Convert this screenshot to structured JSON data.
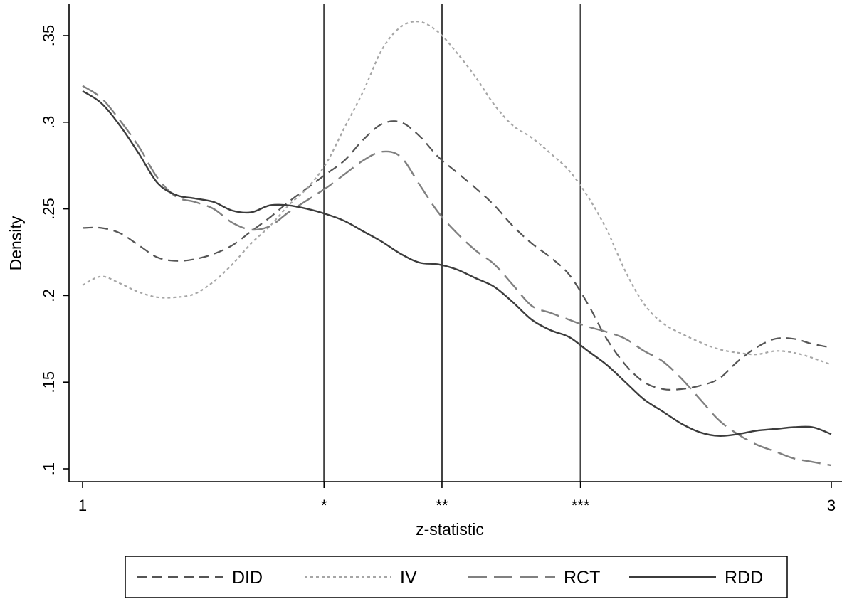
{
  "chart_data": {
    "type": "line",
    "title": "",
    "xlabel": "z-statistic",
    "ylabel": "Density",
    "xlim": [
      1,
      3
    ],
    "ylim": [
      0.1,
      0.36
    ],
    "x_ticks": [
      {
        "value": 1,
        "label": "1"
      },
      {
        "value": 1.645,
        "label": "*"
      },
      {
        "value": 1.96,
        "label": "**"
      },
      {
        "value": 2.33,
        "label": "***"
      },
      {
        "value": 3,
        "label": "3"
      }
    ],
    "y_ticks": [
      {
        "value": 0.1,
        "label": ".1"
      },
      {
        "value": 0.15,
        "label": ".15"
      },
      {
        "value": 0.2,
        "label": ".2"
      },
      {
        "value": 0.25,
        "label": ".25"
      },
      {
        "value": 0.3,
        "label": ".3"
      },
      {
        "value": 0.35,
        "label": ".35"
      }
    ],
    "vlines": [
      1.645,
      1.96,
      2.33
    ],
    "grid": false,
    "legend_position": "bottom",
    "series": [
      {
        "name": "DID",
        "color": "#555555",
        "dash": "14 8",
        "width": 2.2,
        "x": [
          1.0,
          1.05,
          1.1,
          1.15,
          1.2,
          1.25,
          1.3,
          1.35,
          1.4,
          1.45,
          1.5,
          1.55,
          1.6,
          1.65,
          1.7,
          1.75,
          1.8,
          1.85,
          1.9,
          1.95,
          2.0,
          2.05,
          2.1,
          2.15,
          2.2,
          2.25,
          2.3,
          2.35,
          2.4,
          2.45,
          2.5,
          2.55,
          2.6,
          2.65,
          2.7,
          2.75,
          2.8,
          2.85,
          2.9,
          2.95,
          3.0
        ],
        "y": [
          0.239,
          0.239,
          0.236,
          0.229,
          0.222,
          0.22,
          0.221,
          0.224,
          0.229,
          0.237,
          0.245,
          0.254,
          0.262,
          0.27,
          0.278,
          0.29,
          0.299,
          0.3,
          0.292,
          0.28,
          0.271,
          0.262,
          0.252,
          0.24,
          0.23,
          0.222,
          0.212,
          0.195,
          0.175,
          0.16,
          0.15,
          0.146,
          0.146,
          0.148,
          0.152,
          0.162,
          0.17,
          0.175,
          0.175,
          0.172,
          0.17
        ]
      },
      {
        "name": "IV",
        "color": "#a6a6a6",
        "dash": "4 4",
        "width": 2.2,
        "x": [
          1.0,
          1.05,
          1.1,
          1.15,
          1.2,
          1.25,
          1.3,
          1.35,
          1.4,
          1.45,
          1.5,
          1.55,
          1.6,
          1.65,
          1.7,
          1.75,
          1.8,
          1.85,
          1.9,
          1.95,
          2.0,
          2.05,
          2.1,
          2.15,
          2.2,
          2.25,
          2.3,
          2.35,
          2.4,
          2.45,
          2.5,
          2.55,
          2.6,
          2.65,
          2.7,
          2.75,
          2.8,
          2.85,
          2.9,
          2.95,
          3.0
        ],
        "y": [
          0.206,
          0.211,
          0.207,
          0.202,
          0.199,
          0.199,
          0.201,
          0.208,
          0.218,
          0.23,
          0.24,
          0.252,
          0.262,
          0.276,
          0.297,
          0.318,
          0.342,
          0.355,
          0.358,
          0.352,
          0.34,
          0.326,
          0.31,
          0.298,
          0.291,
          0.282,
          0.272,
          0.257,
          0.238,
          0.214,
          0.195,
          0.184,
          0.178,
          0.173,
          0.169,
          0.167,
          0.166,
          0.168,
          0.167,
          0.164,
          0.16
        ]
      },
      {
        "name": "RCT",
        "color": "#808080",
        "dash": "26 10",
        "width": 2.4,
        "x": [
          1.0,
          1.05,
          1.1,
          1.15,
          1.2,
          1.25,
          1.3,
          1.35,
          1.4,
          1.45,
          1.5,
          1.55,
          1.6,
          1.65,
          1.7,
          1.75,
          1.8,
          1.85,
          1.9,
          1.95,
          2.0,
          2.05,
          2.1,
          2.15,
          2.2,
          2.25,
          2.3,
          2.35,
          2.4,
          2.45,
          2.5,
          2.55,
          2.6,
          2.65,
          2.7,
          2.75,
          2.8,
          2.85,
          2.9,
          2.95,
          3.0
        ],
        "y": [
          0.321,
          0.314,
          0.301,
          0.286,
          0.268,
          0.257,
          0.254,
          0.25,
          0.242,
          0.238,
          0.24,
          0.248,
          0.255,
          0.262,
          0.27,
          0.278,
          0.283,
          0.28,
          0.264,
          0.248,
          0.236,
          0.226,
          0.218,
          0.206,
          0.194,
          0.19,
          0.186,
          0.182,
          0.179,
          0.175,
          0.168,
          0.162,
          0.152,
          0.14,
          0.128,
          0.12,
          0.114,
          0.11,
          0.106,
          0.104,
          0.102
        ]
      },
      {
        "name": "RDD",
        "color": "#3c3c3c",
        "dash": "",
        "width": 2.4,
        "x": [
          1.0,
          1.05,
          1.1,
          1.15,
          1.2,
          1.25,
          1.3,
          1.35,
          1.4,
          1.45,
          1.5,
          1.55,
          1.6,
          1.65,
          1.7,
          1.75,
          1.8,
          1.85,
          1.9,
          1.95,
          2.0,
          2.05,
          2.1,
          2.15,
          2.2,
          2.25,
          2.3,
          2.35,
          2.4,
          2.45,
          2.5,
          2.55,
          2.6,
          2.65,
          2.7,
          2.75,
          2.8,
          2.85,
          2.9,
          2.95,
          3.0
        ],
        "y": [
          0.318,
          0.311,
          0.298,
          0.282,
          0.265,
          0.258,
          0.256,
          0.254,
          0.249,
          0.248,
          0.252,
          0.252,
          0.25,
          0.247,
          0.243,
          0.237,
          0.231,
          0.224,
          0.219,
          0.218,
          0.215,
          0.21,
          0.205,
          0.196,
          0.186,
          0.18,
          0.176,
          0.168,
          0.16,
          0.15,
          0.14,
          0.133,
          0.126,
          0.121,
          0.119,
          0.12,
          0.122,
          0.123,
          0.124,
          0.124,
          0.12
        ]
      }
    ]
  }
}
